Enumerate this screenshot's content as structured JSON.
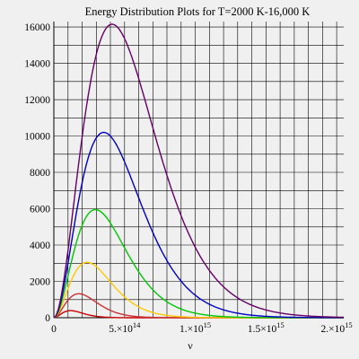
{
  "chart_data": {
    "type": "line",
    "title": "Energy Distribution Plots for  T=2000 K-16,000 K",
    "xlabel": "ν",
    "ylabel": "",
    "xlim": [
      0,
      2050000000000000.0
    ],
    "ylim": [
      0,
      16300
    ],
    "grid": true,
    "legend": "none",
    "x_ticks": [
      {
        "value": 0,
        "label": "0"
      },
      {
        "value": 500000000000000.0,
        "base": "5.×10",
        "exp": "14"
      },
      {
        "value": 1000000000000000.0,
        "base": "1.×10",
        "exp": "15"
      },
      {
        "value": 1500000000000000.0,
        "base": "1.5×10",
        "exp": "15"
      },
      {
        "value": 2000000000000000.0,
        "base": "2.×10",
        "exp": "15"
      }
    ],
    "y_ticks": [
      0,
      2000,
      4000,
      6000,
      8000,
      10000,
      12000,
      14000,
      16000
    ],
    "x_grid_step": 100000000000000.0,
    "y_grid_step": 1000,
    "series": [
      {
        "color": "#c80000",
        "peak_x": 118000000000000.0,
        "peak_y": 390
      },
      {
        "color": "#c83232",
        "peak_x": 176000000000000.0,
        "peak_y": 1320
      },
      {
        "color": "#ffc800",
        "peak_x": 235000000000000.0,
        "peak_y": 3050
      },
      {
        "color": "#00c800",
        "peak_x": 294000000000000.0,
        "peak_y": 5950
      },
      {
        "color": "#0000c8",
        "peak_x": 353000000000000.0,
        "peak_y": 10200
      },
      {
        "color": "#660066",
        "peak_x": 412000000000000.0,
        "peak_y": 16150
      }
    ]
  }
}
